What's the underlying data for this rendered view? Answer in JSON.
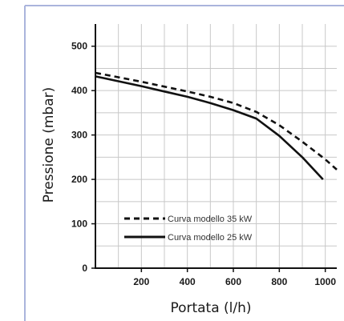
{
  "chart_data": {
    "type": "line",
    "title": "",
    "xlabel": "Portata (l/h)",
    "ylabel": "Pressione (mbar)",
    "xlim": [
      0,
      1050
    ],
    "ylim": [
      0,
      550
    ],
    "x_ticks": [
      200,
      400,
      600,
      800,
      1000
    ],
    "y_ticks": [
      0,
      100,
      200,
      300,
      400,
      500
    ],
    "grid": true,
    "legend_position": "bottom-left",
    "series": [
      {
        "name": "Curva modello 35 kW",
        "style": "dashed",
        "color": "#111111",
        "x": [
          0,
          100,
          200,
          300,
          400,
          500,
          600,
          700,
          800,
          900,
          1000,
          1050
        ],
        "y": [
          440,
          430,
          420,
          409,
          398,
          386,
          372,
          352,
          322,
          285,
          245,
          222
        ]
      },
      {
        "name": "Curva modello 25 kW",
        "style": "solid",
        "color": "#111111",
        "x": [
          0,
          100,
          200,
          300,
          400,
          500,
          600,
          700,
          800,
          900,
          990
        ],
        "y": [
          432,
          421,
          410,
          398,
          386,
          372,
          356,
          337,
          298,
          250,
          200
        ]
      }
    ]
  },
  "style": {
    "frame_color": "#aab4dc",
    "grid_color": "#c8c8c8",
    "line_color": "#111111"
  }
}
